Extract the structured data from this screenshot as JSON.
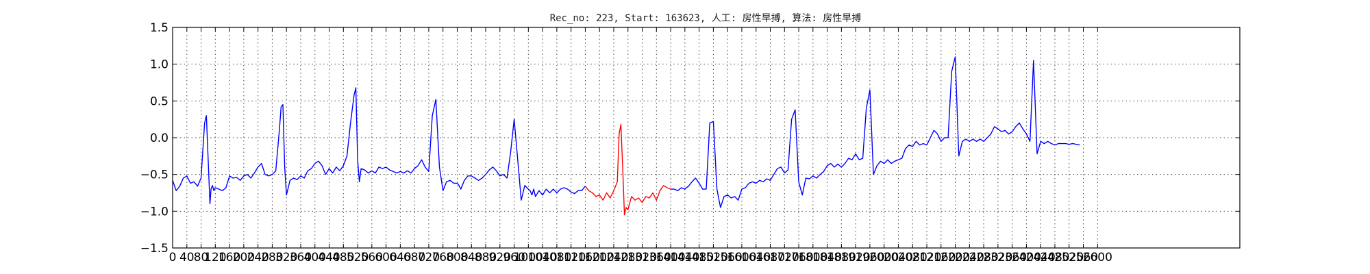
{
  "chart_data": {
    "type": "line",
    "title": "Rec_no: 223, Start: 163623, 人工: 房性早搏, 算法: 房性早搏",
    "xlabel": "",
    "ylabel": "",
    "xlim": [
      0,
      3000
    ],
    "ylim": [
      -1.5,
      1.5
    ],
    "grid": true,
    "x_ticks": [
      0,
      40,
      80,
      120,
      160,
      200,
      240,
      280,
      320,
      360,
      400,
      440,
      480,
      520,
      560,
      600,
      640,
      680,
      720,
      760,
      800,
      840,
      880,
      920,
      960,
      1000,
      1040,
      1080,
      1120,
      1160,
      1200,
      1240,
      1280,
      1320,
      1360,
      1400,
      1440,
      1480,
      1520,
      1560,
      1600,
      1640,
      1680,
      1720,
      1760,
      1800,
      1840,
      1880,
      1920,
      1960,
      2000,
      2040,
      2080,
      2120,
      2160,
      2200,
      2240,
      2280,
      2320,
      2360,
      2400,
      2440,
      2480,
      2520,
      2560,
      2600
    ],
    "y_ticks": [
      -1.5,
      -1.0,
      -0.5,
      0.0,
      0.5,
      1.0,
      1.5
    ],
    "y_tick_labels": [
      "−1.5",
      "−1.0",
      "−0.5",
      "0.0",
      "0.5",
      "1.0",
      "1.5"
    ],
    "x_tick_labels": [
      "0",
      "40",
      "80",
      "120",
      "160",
      "200",
      "240",
      "280",
      "320",
      "360",
      "400",
      "440",
      "480",
      "520",
      "560",
      "600",
      "640",
      "680",
      "720",
      "760",
      "800",
      "840",
      "880",
      "920",
      "960",
      "1000",
      "1040",
      "1080",
      "1120",
      "1160",
      "1200",
      "1240",
      "1280",
      "1320",
      "1360",
      "1400",
      "1440",
      "1480",
      "1520",
      "1560",
      "1600",
      "1640",
      "1680",
      "1720",
      "1760",
      "1800",
      "1840",
      "1880",
      "1920",
      "1960",
      "2000",
      "2040",
      "2080",
      "2120",
      "2160",
      "2200",
      "2240",
      "2280",
      "2320",
      "2360",
      "2400",
      "2440",
      "2480",
      "2520",
      "2560",
      "2600"
    ],
    "series": [
      {
        "color": "#0000ff",
        "x": [
          0,
          10,
          20,
          30,
          40,
          50,
          60,
          70,
          80,
          90,
          95,
          100,
          105,
          108,
          112,
          116,
          120,
          130,
          140,
          150,
          160,
          170,
          180,
          190,
          200,
          210,
          220,
          230,
          240,
          250,
          260,
          270,
          280,
          290,
          300,
          305,
          310,
          315,
          320,
          330,
          340,
          350,
          360,
          370,
          380,
          390,
          400,
          410,
          420,
          430,
          440,
          450,
          460,
          470,
          480,
          490,
          500,
          510,
          515,
          520,
          525,
          530,
          540,
          550,
          560,
          570,
          580,
          590,
          600,
          610,
          620,
          630,
          640,
          650,
          660,
          670,
          680,
          690,
          700,
          710,
          720,
          730,
          740,
          750,
          760,
          770,
          780,
          790,
          800,
          805,
          810,
          815,
          820,
          830,
          840,
          850,
          860,
          870,
          880,
          890,
          900,
          910,
          920,
          930,
          940,
          950,
          960,
          970,
          980,
          990,
          1000,
          1005,
          1010,
          1015,
          1020,
          1030,
          1040,
          1050,
          1060,
          1070,
          1080,
          1090,
          1100,
          1110,
          1120,
          1130,
          1140,
          1150,
          1160
        ],
        "y": [
          -0.58,
          -0.72,
          -0.66,
          -0.55,
          -0.52,
          -0.62,
          -0.6,
          -0.66,
          -0.55,
          0.2,
          0.3,
          -0.3,
          -0.9,
          -0.7,
          -0.65,
          -0.72,
          -0.68,
          -0.7,
          -0.72,
          -0.68,
          -0.52,
          -0.55,
          -0.54,
          -0.58,
          -0.52,
          -0.5,
          -0.55,
          -0.48,
          -0.4,
          -0.35,
          -0.5,
          -0.52,
          -0.5,
          -0.45,
          0.1,
          0.42,
          0.45,
          -0.4,
          -0.78,
          -0.58,
          -0.55,
          -0.57,
          -0.52,
          -0.55,
          -0.45,
          -0.42,
          -0.35,
          -0.32,
          -0.38,
          -0.5,
          -0.42,
          -0.48,
          -0.4,
          -0.45,
          -0.38,
          -0.25,
          0.2,
          0.58,
          0.68,
          -0.3,
          -0.6,
          -0.42,
          -0.44,
          -0.48,
          -0.45,
          -0.48,
          -0.4,
          -0.42,
          -0.4,
          -0.44,
          -0.46,
          -0.48,
          -0.46,
          -0.48,
          -0.45,
          -0.48,
          -0.42,
          -0.38,
          -0.3,
          -0.4,
          -0.46,
          0.3,
          0.52,
          -0.4,
          -0.72,
          -0.6,
          -0.58,
          -0.62,
          -0.62,
          -0.65,
          -0.7,
          -0.64,
          -0.58,
          -0.52,
          -0.52,
          -0.55,
          -0.58,
          -0.55,
          -0.5,
          -0.44,
          -0.4,
          -0.45,
          -0.52,
          -0.5,
          -0.55,
          -0.2,
          0.25,
          -0.3,
          -0.85,
          -0.65,
          -0.7,
          -0.72,
          -0.78,
          -0.7,
          -0.8,
          -0.72,
          -0.78,
          -0.7,
          -0.75,
          -0.7,
          -0.75,
          -0.7,
          -0.68,
          -0.7,
          -0.74,
          -0.76,
          -0.72,
          -0.72,
          -0.66
        ]
      },
      {
        "color": "#ff0000",
        "x": [
          1160,
          1170,
          1180,
          1190,
          1200,
          1210,
          1220,
          1230,
          1240,
          1250,
          1255,
          1260,
          1265,
          1270,
          1275,
          1280,
          1290,
          1300,
          1310,
          1320,
          1330,
          1340,
          1350,
          1360,
          1370,
          1380,
          1390,
          1400
        ],
        "y": [
          -0.66,
          -0.72,
          -0.75,
          -0.8,
          -0.78,
          -0.85,
          -0.75,
          -0.82,
          -0.72,
          -0.6,
          0.05,
          0.18,
          -0.4,
          -1.05,
          -0.95,
          -0.98,
          -0.8,
          -0.85,
          -0.82,
          -0.88,
          -0.8,
          -0.82,
          -0.75,
          -0.85,
          -0.72,
          -0.65,
          -0.68,
          -0.7
        ]
      },
      {
        "color": "#0000ff",
        "x": [
          1400,
          1410,
          1420,
          1430,
          1440,
          1450,
          1460,
          1470,
          1480,
          1490,
          1500,
          1510,
          1520,
          1530,
          1540,
          1550,
          1560,
          1570,
          1580,
          1590,
          1600,
          1610,
          1620,
          1630,
          1640,
          1650,
          1660,
          1670,
          1680,
          1690,
          1700,
          1710,
          1720,
          1730,
          1740,
          1750,
          1760,
          1770,
          1780,
          1790,
          1800,
          1810,
          1820,
          1830,
          1840,
          1850,
          1860,
          1870,
          1880,
          1890,
          1900,
          1910,
          1920,
          1930,
          1940,
          1950,
          1960,
          1970,
          1980,
          1990,
          2000,
          2010,
          2020,
          2030,
          2040,
          2050,
          2060,
          2070,
          2080,
          2090,
          2100,
          2110,
          2120,
          2130,
          2140,
          2150,
          2160,
          2170,
          2180,
          2190,
          2200,
          2210,
          2220,
          2230,
          2240,
          2250,
          2260,
          2270,
          2280,
          2290,
          2300,
          2310,
          2320,
          2330,
          2340,
          2350,
          2360,
          2370,
          2380,
          2390,
          2400,
          2410,
          2420,
          2430,
          2440,
          2450,
          2460,
          2470,
          2480,
          2490,
          2500,
          2510,
          2520,
          2530,
          2540,
          2550
        ],
        "y": [
          -0.7,
          -0.7,
          -0.72,
          -0.68,
          -0.7,
          -0.66,
          -0.6,
          -0.55,
          -0.62,
          -0.7,
          -0.7,
          0.2,
          0.22,
          -0.7,
          -0.95,
          -0.8,
          -0.78,
          -0.82,
          -0.8,
          -0.85,
          -0.7,
          -0.68,
          -0.62,
          -0.6,
          -0.62,
          -0.58,
          -0.6,
          -0.56,
          -0.58,
          -0.5,
          -0.42,
          -0.4,
          -0.48,
          -0.44,
          0.25,
          0.38,
          -0.6,
          -0.78,
          -0.55,
          -0.56,
          -0.52,
          -0.55,
          -0.5,
          -0.46,
          -0.38,
          -0.35,
          -0.4,
          -0.36,
          -0.4,
          -0.35,
          -0.28,
          -0.3,
          -0.22,
          -0.3,
          -0.28,
          0.4,
          0.65,
          -0.5,
          -0.38,
          -0.32,
          -0.35,
          -0.3,
          -0.35,
          -0.32,
          -0.3,
          -0.28,
          -0.15,
          -0.1,
          -0.12,
          -0.05,
          -0.1,
          -0.08,
          -0.1,
          0.0,
          0.1,
          0.05,
          -0.05,
          0.0,
          0.0,
          0.9,
          1.1,
          -0.25,
          -0.05,
          -0.02,
          -0.05,
          -0.02,
          -0.05,
          -0.02,
          -0.05,
          0.0,
          0.05,
          0.15,
          0.12,
          0.08,
          0.1,
          0.05,
          0.08,
          0.15,
          0.2,
          0.12,
          0.05,
          -0.05,
          1.05,
          -0.22,
          -0.05,
          -0.08,
          -0.05,
          -0.08,
          -0.1,
          -0.08,
          -0.08,
          -0.08,
          -0.09,
          -0.08,
          -0.09,
          -0.1
        ]
      }
    ]
  }
}
